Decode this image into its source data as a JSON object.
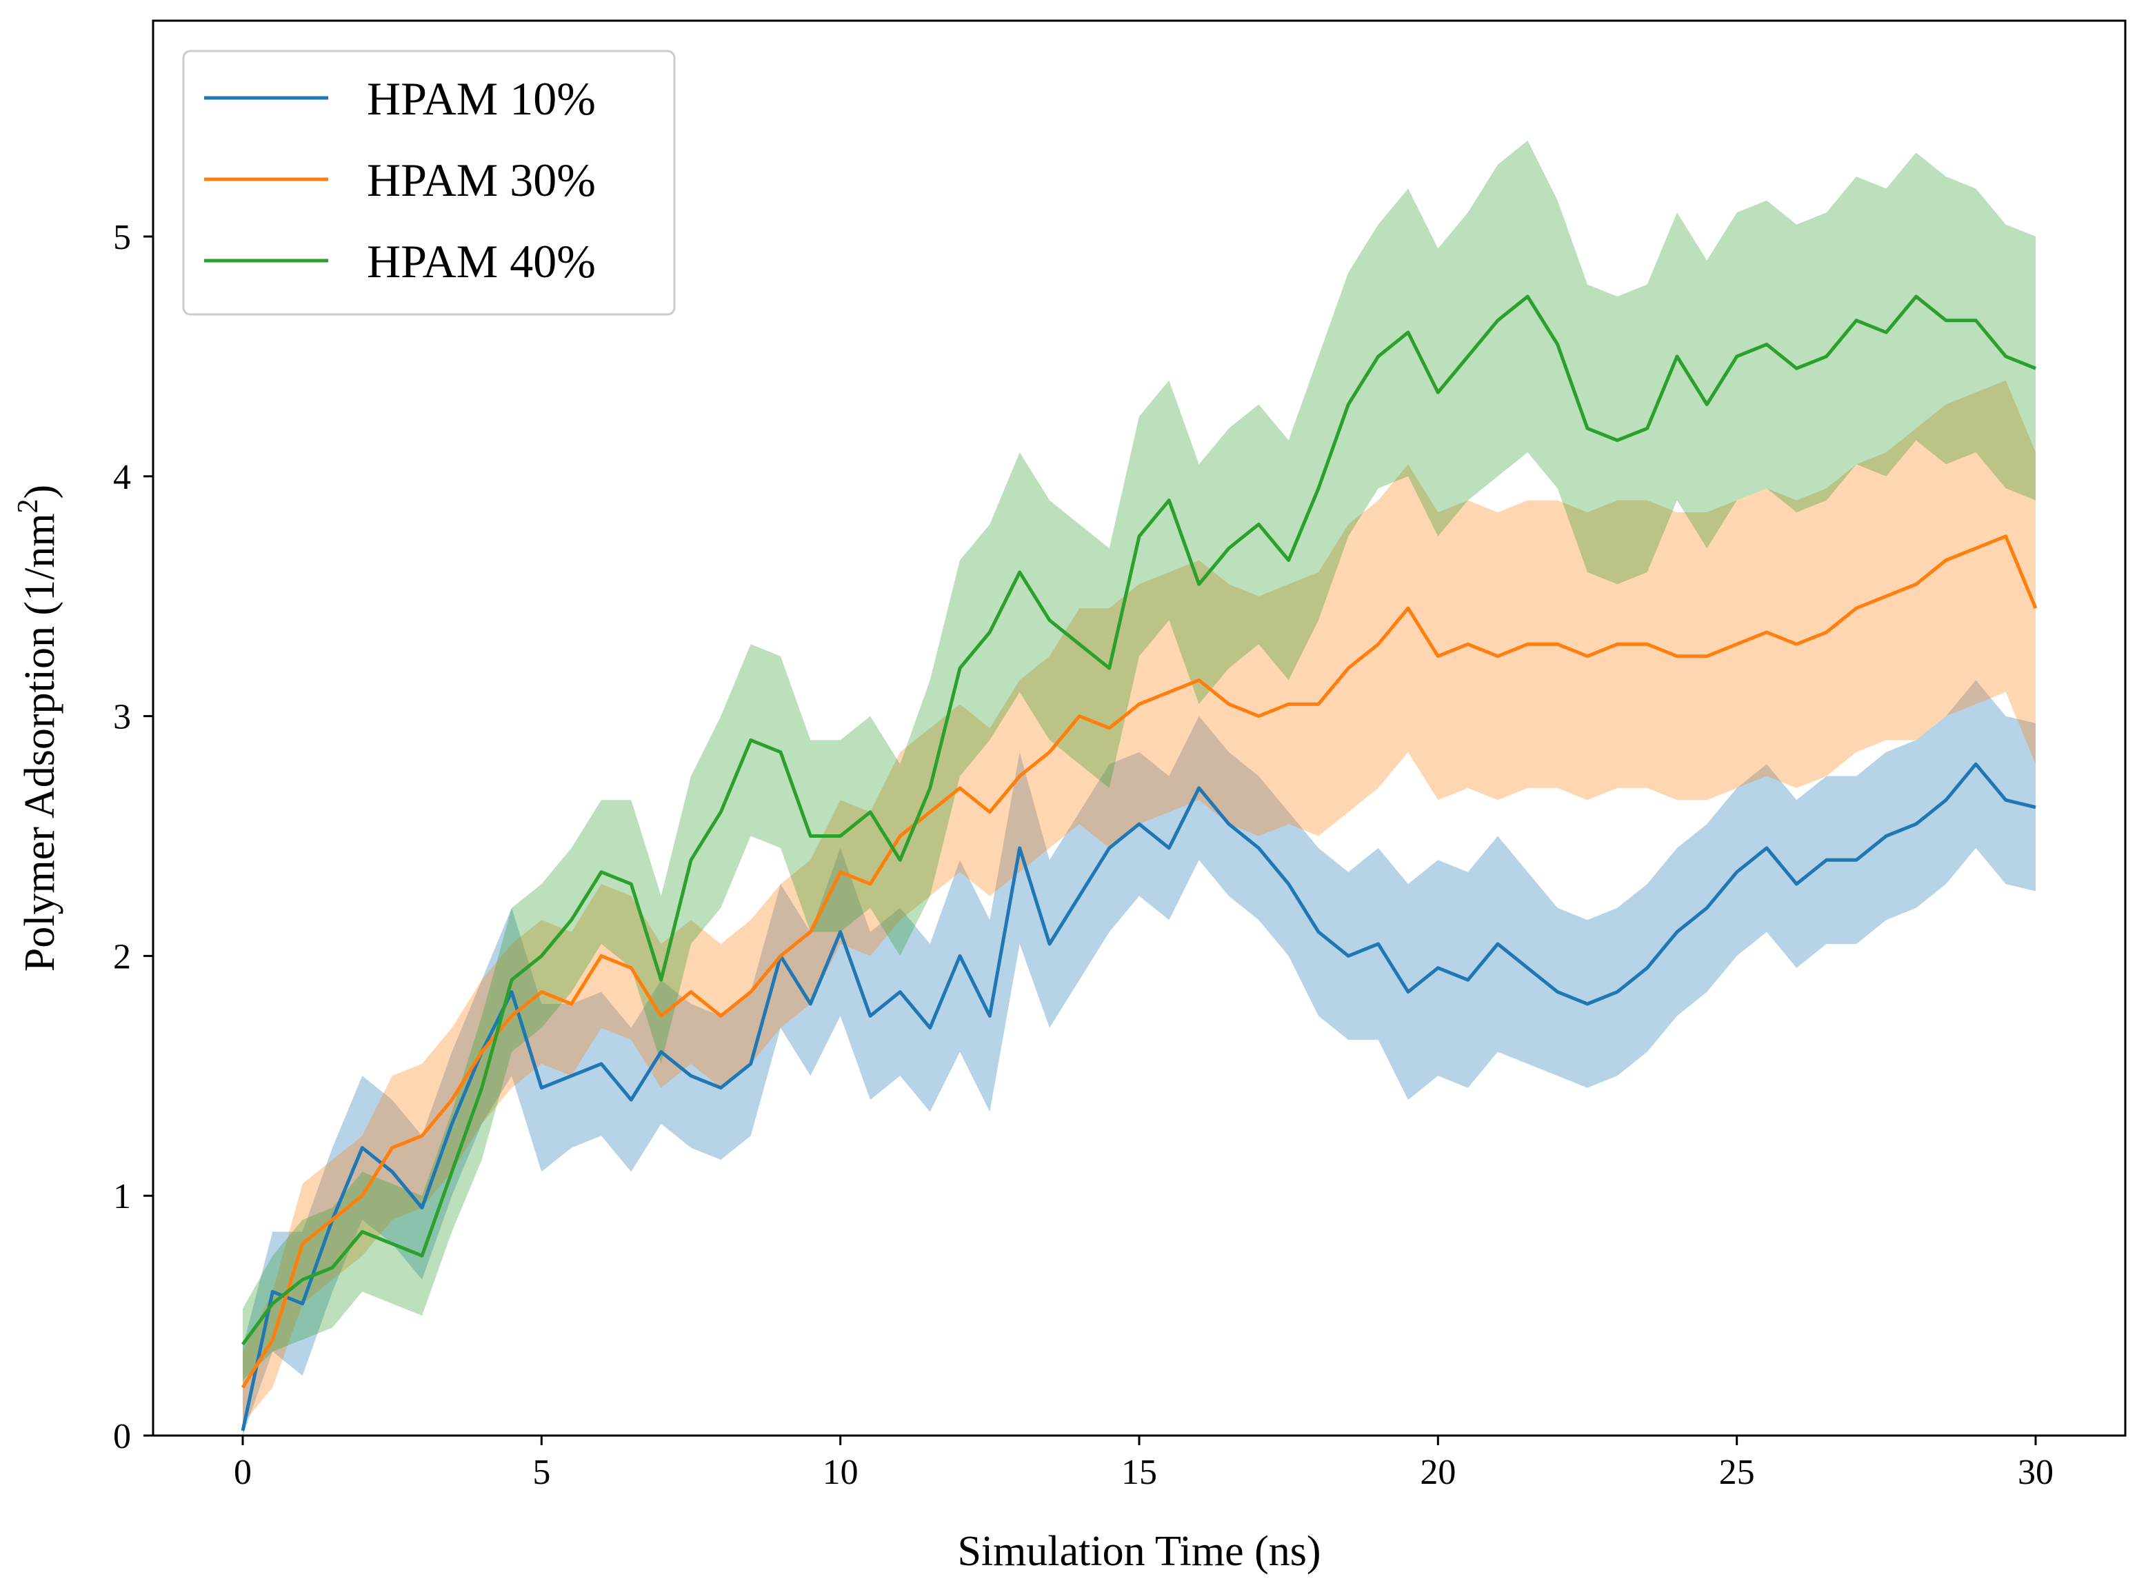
{
  "colors": {
    "hpam10": "#1f77b4",
    "hpam30": "#ff7f0e",
    "hpam40": "#2ca02c"
  },
  "chart_data": {
    "type": "line",
    "title": "",
    "xlabel": "Simulation Time (ns)",
    "ylabel_main": "Polymer Adsorption (1/nm",
    "ylabel_sup": "2",
    "ylabel_end": ")",
    "xlim": [
      -1.5,
      31.5
    ],
    "ylim": [
      0,
      5.9
    ],
    "xticks": [
      0,
      5,
      10,
      15,
      20,
      25,
      30
    ],
    "yticks": [
      0,
      1,
      2,
      3,
      4,
      5
    ],
    "legend_position": "top-left",
    "series": [
      {
        "name": "HPAM 10%",
        "color": "#1f77b4",
        "x": [
          0,
          0.5,
          1,
          1.5,
          2,
          2.5,
          3,
          3.5,
          4,
          4.5,
          5,
          5.5,
          6,
          6.5,
          7,
          7.5,
          8,
          8.5,
          9,
          9.5,
          10,
          10.5,
          11,
          11.5,
          12,
          12.5,
          13,
          13.5,
          14,
          14.5,
          15,
          15.5,
          16,
          16.5,
          17,
          17.5,
          18,
          18.5,
          19,
          19.5,
          20,
          20.5,
          21,
          21.5,
          22,
          22.5,
          23,
          23.5,
          24,
          24.5,
          25,
          25.5,
          26,
          26.5,
          27,
          27.5,
          28,
          28.5,
          29,
          29.5,
          30
        ],
        "values": [
          0.02,
          0.6,
          0.55,
          0.9,
          1.2,
          1.1,
          0.95,
          1.3,
          1.6,
          1.85,
          1.45,
          1.5,
          1.55,
          1.4,
          1.6,
          1.5,
          1.45,
          1.55,
          2.0,
          1.8,
          2.1,
          1.75,
          1.85,
          1.7,
          2.0,
          1.75,
          2.45,
          2.05,
          2.25,
          2.45,
          2.55,
          2.45,
          2.7,
          2.55,
          2.45,
          2.3,
          2.1,
          2.0,
          2.05,
          1.85,
          1.95,
          1.9,
          2.05,
          1.95,
          1.85,
          1.8,
          1.85,
          1.95,
          2.1,
          2.2,
          2.35,
          2.45,
          2.3,
          2.4,
          2.4,
          2.5,
          2.55,
          2.65,
          2.8,
          2.65,
          2.62
        ],
        "band": [
          0.35,
          0.25,
          0.3,
          0.3,
          0.3,
          0.3,
          0.3,
          0.3,
          0.3,
          0.35,
          0.35,
          0.3,
          0.3,
          0.3,
          0.3,
          0.3,
          0.3,
          0.3,
          0.3,
          0.3,
          0.35,
          0.35,
          0.35,
          0.35,
          0.4,
          0.4,
          0.4,
          0.35,
          0.35,
          0.35,
          0.3,
          0.3,
          0.3,
          0.3,
          0.3,
          0.3,
          0.35,
          0.35,
          0.4,
          0.45,
          0.45,
          0.45,
          0.45,
          0.4,
          0.35,
          0.35,
          0.35,
          0.35,
          0.35,
          0.35,
          0.35,
          0.35,
          0.35,
          0.35,
          0.35,
          0.35,
          0.35,
          0.35,
          0.35,
          0.35,
          0.35
        ]
      },
      {
        "name": "HPAM 30%",
        "color": "#ff7f0e",
        "x": [
          0,
          0.5,
          1,
          1.5,
          2,
          2.5,
          3,
          3.5,
          4,
          4.5,
          5,
          5.5,
          6,
          6.5,
          7,
          7.5,
          8,
          8.5,
          9,
          9.5,
          10,
          10.5,
          11,
          11.5,
          12,
          12.5,
          13,
          13.5,
          14,
          14.5,
          15,
          15.5,
          16,
          16.5,
          17,
          17.5,
          18,
          18.5,
          19,
          19.5,
          20,
          20.5,
          21,
          21.5,
          22,
          22.5,
          23,
          23.5,
          24,
          24.5,
          25,
          25.5,
          26,
          26.5,
          27,
          27.5,
          28,
          28.5,
          29,
          29.5,
          30
        ],
        "values": [
          0.2,
          0.4,
          0.8,
          0.9,
          1.0,
          1.2,
          1.25,
          1.4,
          1.6,
          1.75,
          1.85,
          1.8,
          2.0,
          1.95,
          1.75,
          1.85,
          1.75,
          1.85,
          2.0,
          2.1,
          2.35,
          2.3,
          2.5,
          2.6,
          2.7,
          2.6,
          2.75,
          2.85,
          3.0,
          2.95,
          3.05,
          3.1,
          3.15,
          3.05,
          3.0,
          3.05,
          3.05,
          3.2,
          3.3,
          3.45,
          3.25,
          3.3,
          3.25,
          3.3,
          3.3,
          3.25,
          3.3,
          3.3,
          3.25,
          3.25,
          3.3,
          3.35,
          3.3,
          3.35,
          3.45,
          3.5,
          3.55,
          3.65,
          3.7,
          3.75,
          3.45
        ],
        "band": [
          0.15,
          0.2,
          0.25,
          0.25,
          0.25,
          0.3,
          0.3,
          0.3,
          0.3,
          0.3,
          0.3,
          0.3,
          0.3,
          0.3,
          0.3,
          0.3,
          0.3,
          0.3,
          0.3,
          0.3,
          0.3,
          0.3,
          0.35,
          0.35,
          0.35,
          0.35,
          0.4,
          0.4,
          0.45,
          0.5,
          0.5,
          0.5,
          0.5,
          0.5,
          0.5,
          0.5,
          0.55,
          0.6,
          0.6,
          0.6,
          0.6,
          0.6,
          0.6,
          0.6,
          0.6,
          0.6,
          0.6,
          0.6,
          0.6,
          0.6,
          0.6,
          0.6,
          0.6,
          0.6,
          0.6,
          0.6,
          0.65,
          0.65,
          0.65,
          0.65,
          0.65
        ]
      },
      {
        "name": "HPAM 40%",
        "color": "#2ca02c",
        "x": [
          0,
          0.5,
          1,
          1.5,
          2,
          2.5,
          3,
          3.5,
          4,
          4.5,
          5,
          5.5,
          6,
          6.5,
          7,
          7.5,
          8,
          8.5,
          9,
          9.5,
          10,
          10.5,
          11,
          11.5,
          12,
          12.5,
          13,
          13.5,
          14,
          14.5,
          15,
          15.5,
          16,
          16.5,
          17,
          17.5,
          18,
          18.5,
          19,
          19.5,
          20,
          20.5,
          21,
          21.5,
          22,
          22.5,
          23,
          23.5,
          24,
          24.5,
          25,
          25.5,
          26,
          26.5,
          27,
          27.5,
          28,
          28.5,
          29,
          29.5,
          30
        ],
        "values": [
          0.38,
          0.55,
          0.65,
          0.7,
          0.85,
          0.8,
          0.75,
          1.1,
          1.45,
          1.9,
          2.0,
          2.15,
          2.35,
          2.3,
          1.9,
          2.4,
          2.6,
          2.9,
          2.85,
          2.5,
          2.5,
          2.6,
          2.4,
          2.7,
          3.2,
          3.35,
          3.6,
          3.4,
          3.3,
          3.2,
          3.75,
          3.9,
          3.55,
          3.7,
          3.8,
          3.65,
          3.95,
          4.3,
          4.5,
          4.6,
          4.35,
          4.5,
          4.65,
          4.75,
          4.55,
          4.2,
          4.15,
          4.2,
          4.5,
          4.3,
          4.5,
          4.55,
          4.45,
          4.5,
          4.65,
          4.6,
          4.75,
          4.65,
          4.65,
          4.5,
          4.45
        ],
        "band": [
          0.15,
          0.2,
          0.25,
          0.25,
          0.25,
          0.25,
          0.25,
          0.25,
          0.3,
          0.3,
          0.3,
          0.3,
          0.3,
          0.35,
          0.35,
          0.35,
          0.4,
          0.4,
          0.4,
          0.4,
          0.4,
          0.4,
          0.4,
          0.45,
          0.45,
          0.45,
          0.5,
          0.5,
          0.5,
          0.5,
          0.5,
          0.5,
          0.5,
          0.5,
          0.5,
          0.5,
          0.55,
          0.55,
          0.55,
          0.6,
          0.6,
          0.6,
          0.65,
          0.65,
          0.6,
          0.6,
          0.6,
          0.6,
          0.6,
          0.6,
          0.6,
          0.6,
          0.6,
          0.6,
          0.6,
          0.6,
          0.6,
          0.6,
          0.55,
          0.55,
          0.55
        ]
      }
    ]
  }
}
